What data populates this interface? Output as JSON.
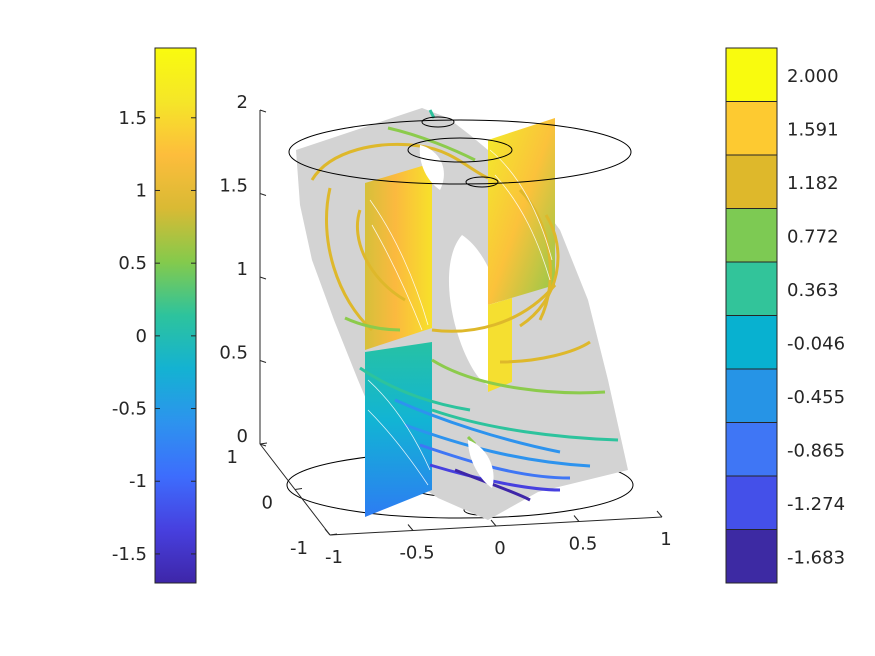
{
  "chart_data": {
    "type": "3d-surface",
    "grid": false,
    "axes": {
      "x": {
        "range": [
          -1,
          1
        ],
        "ticks": [
          "-1",
          "-0.5",
          "0",
          "0.5",
          "1"
        ]
      },
      "y": {
        "range": [
          -1,
          1
        ],
        "ticks": [
          "-1",
          "0",
          "1"
        ]
      },
      "z": {
        "range": [
          0,
          2
        ],
        "ticks": [
          "0",
          "0.5",
          "1",
          "1.5",
          "2"
        ]
      }
    },
    "colorbar_continuous": {
      "placement": "left",
      "range": [
        -1.7,
        1.98
      ],
      "ticks": [
        "1.5",
        "1",
        "0.5",
        "0",
        "-0.5",
        "-1",
        "-1.5"
      ],
      "tick_values": [
        1.5,
        1,
        0.5,
        0,
        -0.5,
        -1,
        -1.5
      ]
    },
    "colorbar_discrete": {
      "placement": "right",
      "levels": [
        "2.000",
        "1.591",
        "1.182",
        "0.772",
        "0.363",
        "-0.046",
        "-0.455",
        "-0.865",
        "-1.274",
        "-1.683"
      ],
      "colors": [
        "#F9FB0E",
        "#FDCA31",
        "#DEB82B",
        "#7DCA53",
        "#32C49A",
        "#08B1D0",
        "#2694E6",
        "#3F76F5",
        "#4450E9",
        "#3D2AA3"
      ]
    },
    "colormap": [
      "#3E26A8",
      "#4740DF",
      "#3D6DFD",
      "#2D93EE",
      "#14B2D2",
      "#2DC39D",
      "#84CA4C",
      "#D9BA34",
      "#FDBD3C",
      "#F5E628",
      "#F9FB0E"
    ]
  }
}
